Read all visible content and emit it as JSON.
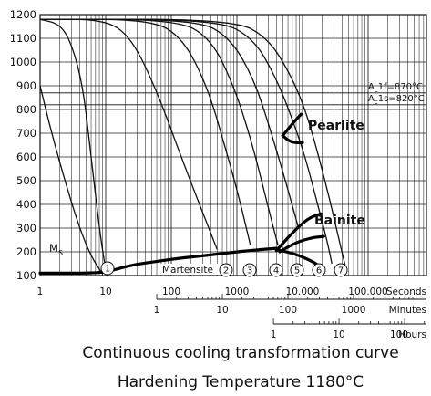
{
  "chart_data": {
    "type": "line",
    "title": "Continuous cooling transformation curve",
    "subtitle": "Hardening Temperature 1180°C",
    "x_scale": "log",
    "grid": true,
    "y_axis": {
      "label": "",
      "ylim": [
        100,
        1200
      ],
      "ticks": [
        100,
        200,
        300,
        400,
        500,
        600,
        700,
        800,
        900,
        1000,
        1100,
        1200
      ]
    },
    "x_axes": [
      {
        "name": "Seconds",
        "unit_label": "Seconds",
        "range": [
          1,
          100000
        ],
        "ticks": [
          {
            "value": 1,
            "label": "1"
          },
          {
            "value": 10,
            "label": "10"
          },
          {
            "value": 100,
            "label": "100"
          },
          {
            "value": 1000,
            "label": "1000"
          },
          {
            "value": 10000,
            "label": "10.000"
          },
          {
            "value": 100000,
            "label": "100.000"
          }
        ]
      },
      {
        "name": "Minutes",
        "unit_label": "Minutes",
        "ticks": [
          {
            "seconds": 60,
            "label": "1"
          },
          {
            "seconds": 600,
            "label": "10"
          },
          {
            "seconds": 6000,
            "label": "100"
          },
          {
            "seconds": 60000,
            "label": "1000"
          }
        ]
      },
      {
        "name": "Hours",
        "unit_label": "Hours",
        "ticks": [
          {
            "seconds": 3600,
            "label": "1"
          },
          {
            "seconds": 36000,
            "label": "10"
          },
          {
            "seconds": 360000,
            "label": "100"
          }
        ]
      }
    ],
    "reference_lines": [
      {
        "label": "Ac1f=870°C",
        "subscript_base": "A",
        "subscript": "c",
        "suffix": "1f=870°C",
        "y": 870
      },
      {
        "label": "Ac1s=820°C",
        "subscript_base": "A",
        "subscript": "c",
        "suffix": "1s=820°C",
        "y": 820
      }
    ],
    "cooling_curves": [
      {
        "id": "0",
        "points": [
          [
            1,
            900
          ],
          [
            1.5,
            700
          ],
          [
            2.5,
            480
          ],
          [
            4,
            300
          ],
          [
            6,
            180
          ],
          [
            9,
            105
          ]
        ]
      },
      {
        "id": "1",
        "marker": "1",
        "points": [
          [
            1,
            1180
          ],
          [
            2,
            1160
          ],
          [
            3,
            1080
          ],
          [
            4.5,
            900
          ],
          [
            6,
            600
          ],
          [
            8,
            300
          ],
          [
            10,
            120
          ]
        ]
      },
      {
        "id": "2",
        "marker": "2",
        "points": [
          [
            1,
            1180
          ],
          [
            10,
            1180
          ],
          [
            25,
            1100
          ],
          [
            60,
            880
          ],
          [
            150,
            580
          ],
          [
            350,
            320
          ],
          [
            500,
            210
          ]
        ]
      },
      {
        "id": "3",
        "marker": "3",
        "points": [
          [
            1,
            1180
          ],
          [
            50,
            1180
          ],
          [
            150,
            1100
          ],
          [
            350,
            900
          ],
          [
            650,
            650
          ],
          [
            1100,
            420
          ],
          [
            1600,
            230
          ]
        ]
      },
      {
        "id": "4",
        "marker": "4",
        "points": [
          [
            1,
            1180
          ],
          [
            120,
            1180
          ],
          [
            400,
            1100
          ],
          [
            900,
            900
          ],
          [
            1700,
            660
          ],
          [
            2800,
            420
          ],
          [
            4200,
            230
          ]
        ]
      },
      {
        "id": "5",
        "marker": "5",
        "points": [
          [
            1,
            1180
          ],
          [
            250,
            1180
          ],
          [
            800,
            1100
          ],
          [
            1800,
            930
          ],
          [
            3200,
            720
          ],
          [
            5500,
            500
          ],
          [
            8500,
            310
          ]
        ]
      },
      {
        "id": "6",
        "marker": "6",
        "points": [
          [
            1,
            1180
          ],
          [
            500,
            1180
          ],
          [
            1800,
            1100
          ],
          [
            4000,
            930
          ],
          [
            7000,
            760
          ],
          [
            11000,
            600
          ],
          [
            17000,
            400
          ],
          [
            24000,
            240
          ],
          [
            28000,
            150
          ]
        ]
      },
      {
        "id": "7",
        "marker": "7",
        "points": [
          [
            1,
            1180
          ],
          [
            900,
            1180
          ],
          [
            3000,
            1100
          ],
          [
            6500,
            950
          ],
          [
            11000,
            800
          ],
          [
            17000,
            620
          ],
          [
            26000,
            420
          ],
          [
            36000,
            250
          ],
          [
            45000,
            140
          ]
        ]
      }
    ],
    "phase_regions": [
      {
        "name": "Pearlite",
        "label": "Pearlite",
        "boundaries": [
          [
            [
              5000,
              690
            ],
            [
              7000,
              740
            ],
            [
              9500,
              780
            ]
          ],
          [
            [
              5000,
              690
            ],
            [
              6000,
              670
            ],
            [
              7500,
              660
            ],
            [
              10000,
              660
            ]
          ]
        ]
      },
      {
        "name": "Bainite",
        "label": "Bainite",
        "boundaries": [
          [
            [
              4000,
              205
            ],
            [
              6000,
              260
            ],
            [
              9000,
              310
            ],
            [
              13000,
              345
            ],
            [
              19000,
              360
            ]
          ],
          [
            [
              4500,
              200
            ],
            [
              8000,
              240
            ],
            [
              14000,
              260
            ],
            [
              21000,
              265
            ]
          ],
          [
            [
              4000,
              210
            ],
            [
              8000,
              190
            ],
            [
              14000,
              160
            ],
            [
              17000,
              145
            ]
          ]
        ]
      },
      {
        "name": "Martensite",
        "label": "Martensite",
        "boundaries": [
          [
            [
              1,
              110
            ],
            [
              4,
              110
            ],
            [
              8,
              112
            ],
            [
              12,
              120
            ],
            [
              25,
              145
            ],
            [
              60,
              160
            ],
            [
              150,
              175
            ],
            [
              500,
              190
            ],
            [
              1500,
              205
            ],
            [
              4000,
              215
            ]
          ]
        ]
      }
    ],
    "ms_label": {
      "base": "M",
      "sub": "S"
    }
  }
}
